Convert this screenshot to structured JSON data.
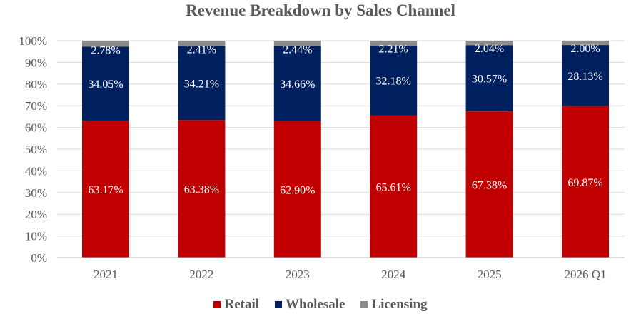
{
  "chart_data": {
    "type": "bar",
    "stacked": true,
    "percent": true,
    "title": "Revenue Breakdown by Sales Channel",
    "xlabel": "",
    "ylabel": "",
    "ylim": [
      0,
      100
    ],
    "yticks": [
      "0%",
      "10%",
      "20%",
      "30%",
      "40%",
      "50%",
      "60%",
      "70%",
      "80%",
      "90%",
      "100%"
    ],
    "grid": true,
    "legend_position": "bottom",
    "categories": [
      "2021",
      "2022",
      "2023",
      "2024",
      "2025",
      "2026 Q1"
    ],
    "series": [
      {
        "name": "Retail",
        "color": "#C00000",
        "values": [
          63.17,
          63.38,
          62.9,
          65.61,
          67.38,
          69.87
        ],
        "labels": [
          "63.17%",
          "63.38%",
          "62.90%",
          "65.61%",
          "67.38%",
          "69.87%"
        ]
      },
      {
        "name": "Wholesale",
        "color": "#002060",
        "values": [
          34.05,
          34.21,
          34.66,
          32.18,
          30.57,
          28.13
        ],
        "labels": [
          "34.05%",
          "34.21%",
          "34.66%",
          "32.18%",
          "30.57%",
          "28.13%"
        ]
      },
      {
        "name": "Licensing",
        "color": "#8C8C8C",
        "values": [
          2.78,
          2.41,
          2.44,
          2.21,
          2.04,
          2.0
        ],
        "labels": [
          "2.78%",
          "2.41%",
          "2.44%",
          "2.21%",
          "2.04%",
          "2.00%"
        ]
      }
    ]
  }
}
